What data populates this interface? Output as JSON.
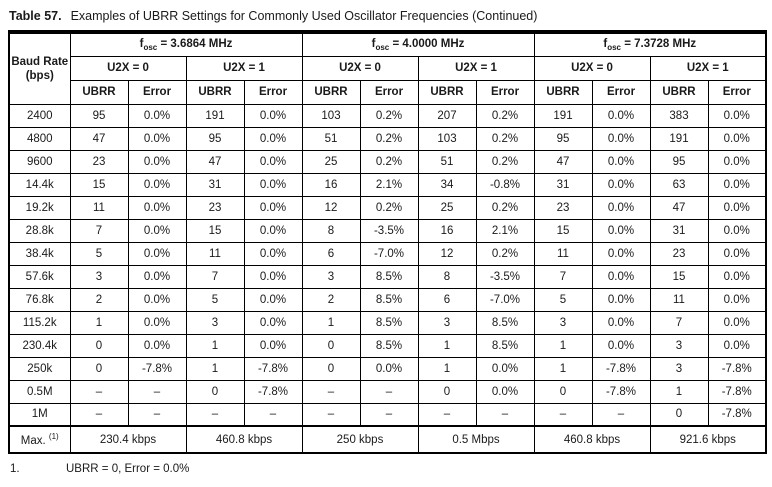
{
  "page": {
    "title_label": "Table 57.",
    "title_text": "Examples of UBRR Settings for Commonly Used Oscillator Frequencies (Continued)"
  },
  "table": {
    "type": "table",
    "baud_header": "Baud Rate (bps)",
    "osc_groups": [
      {
        "symbol": "f",
        "subscript": "osc",
        "value": " = 3.6864 MHz"
      },
      {
        "symbol": "f",
        "subscript": "osc",
        "value": " = 4.0000 MHz"
      },
      {
        "symbol": "f",
        "subscript": "osc",
        "value": " = 7.3728 MHz"
      }
    ],
    "u2x_headers": [
      "U2X = 0",
      "U2X = 1",
      "U2X = 0",
      "U2X = 1",
      "U2X = 0",
      "U2X = 1"
    ],
    "col_headers": [
      "UBRR",
      "Error",
      "UBRR",
      "Error",
      "UBRR",
      "Error",
      "UBRR",
      "Error",
      "UBRR",
      "Error",
      "UBRR",
      "Error"
    ],
    "rows": [
      {
        "baud": "2400",
        "values": [
          "95",
          "0.0%",
          "191",
          "0.0%",
          "103",
          "0.2%",
          "207",
          "0.2%",
          "191",
          "0.0%",
          "383",
          "0.0%"
        ]
      },
      {
        "baud": "4800",
        "values": [
          "47",
          "0.0%",
          "95",
          "0.0%",
          "51",
          "0.2%",
          "103",
          "0.2%",
          "95",
          "0.0%",
          "191",
          "0.0%"
        ]
      },
      {
        "baud": "9600",
        "values": [
          "23",
          "0.0%",
          "47",
          "0.0%",
          "25",
          "0.2%",
          "51",
          "0.2%",
          "47",
          "0.0%",
          "95",
          "0.0%"
        ]
      },
      {
        "baud": "14.4k",
        "values": [
          "15",
          "0.0%",
          "31",
          "0.0%",
          "16",
          "2.1%",
          "34",
          "-0.8%",
          "31",
          "0.0%",
          "63",
          "0.0%"
        ]
      },
      {
        "baud": "19.2k",
        "values": [
          "11",
          "0.0%",
          "23",
          "0.0%",
          "12",
          "0.2%",
          "25",
          "0.2%",
          "23",
          "0.0%",
          "47",
          "0.0%"
        ]
      },
      {
        "baud": "28.8k",
        "values": [
          "7",
          "0.0%",
          "15",
          "0.0%",
          "8",
          "-3.5%",
          "16",
          "2.1%",
          "15",
          "0.0%",
          "31",
          "0.0%"
        ]
      },
      {
        "baud": "38.4k",
        "values": [
          "5",
          "0.0%",
          "11",
          "0.0%",
          "6",
          "-7.0%",
          "12",
          "0.2%",
          "11",
          "0.0%",
          "23",
          "0.0%"
        ]
      },
      {
        "baud": "57.6k",
        "values": [
          "3",
          "0.0%",
          "7",
          "0.0%",
          "3",
          "8.5%",
          "8",
          "-3.5%",
          "7",
          "0.0%",
          "15",
          "0.0%"
        ]
      },
      {
        "baud": "76.8k",
        "values": [
          "2",
          "0.0%",
          "5",
          "0.0%",
          "2",
          "8.5%",
          "6",
          "-7.0%",
          "5",
          "0.0%",
          "11",
          "0.0%"
        ]
      },
      {
        "baud": "115.2k",
        "values": [
          "1",
          "0.0%",
          "3",
          "0.0%",
          "1",
          "8.5%",
          "3",
          "8.5%",
          "3",
          "0.0%",
          "7",
          "0.0%"
        ]
      },
      {
        "baud": "230.4k",
        "values": [
          "0",
          "0.0%",
          "1",
          "0.0%",
          "0",
          "8.5%",
          "1",
          "8.5%",
          "1",
          "0.0%",
          "3",
          "0.0%"
        ]
      },
      {
        "baud": "250k",
        "values": [
          "0",
          "-7.8%",
          "1",
          "-7.8%",
          "0",
          "0.0%",
          "1",
          "0.0%",
          "1",
          "-7.8%",
          "3",
          "-7.8%"
        ]
      },
      {
        "baud": "0.5M",
        "values": [
          "–",
          "–",
          "0",
          "-7.8%",
          "–",
          "–",
          "0",
          "0.0%",
          "0",
          "-7.8%",
          "1",
          "-7.8%"
        ]
      },
      {
        "baud": "1M",
        "values": [
          "–",
          "–",
          "–",
          "–",
          "–",
          "–",
          "–",
          "–",
          "–",
          "–",
          "0",
          "-7.8%"
        ]
      }
    ],
    "max_row": {
      "label": "Max.",
      "footnote_ref": "(1)",
      "values": [
        "230.4 kbps",
        "460.8 kbps",
        "250 kbps",
        "0.5 Mbps",
        "460.8 kbps",
        "921.6 kbps"
      ]
    }
  },
  "footnote": {
    "number": "1.",
    "text": "UBRR = 0, Error = 0.0%"
  }
}
